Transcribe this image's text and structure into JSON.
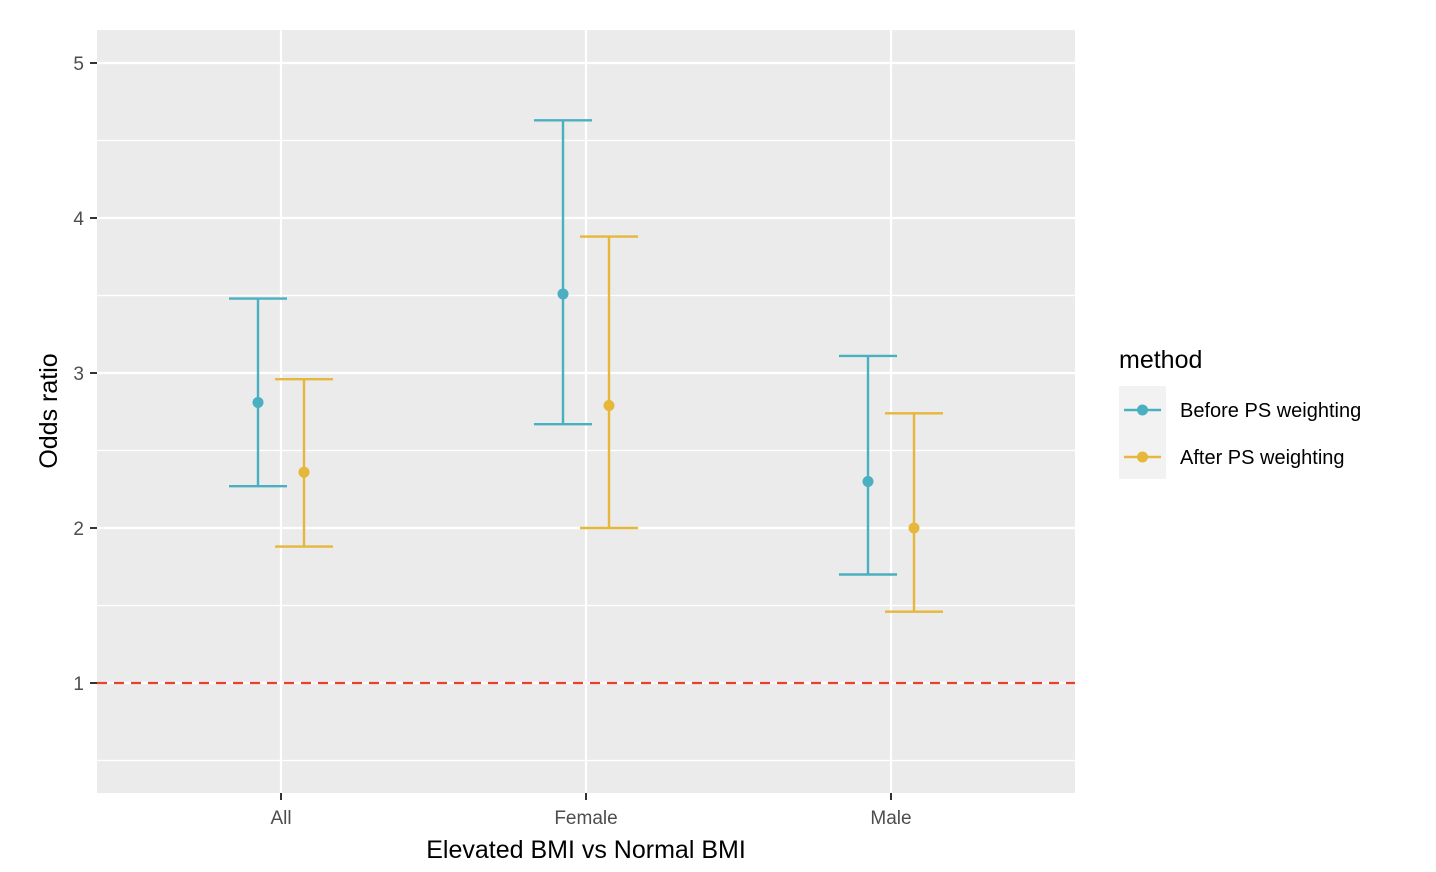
{
  "chart_data": {
    "type": "errorbar",
    "categories": [
      "All",
      "Female",
      "Male"
    ],
    "xlabel": "Elevated BMI vs Normal BMI",
    "ylabel": "Odds ratio",
    "ylim": [
      0.3,
      5.2
    ],
    "yticks": [
      1,
      2,
      3,
      4,
      5
    ],
    "yminor": [
      1.5,
      2.5,
      3.5,
      4.5,
      0.5
    ],
    "grid": true,
    "reference_line": {
      "y": 1,
      "style": "dashed",
      "color": "#e8402f"
    },
    "legend": {
      "title": "method",
      "position": "right"
    },
    "series": [
      {
        "name": "Before PS weighting",
        "color": "#4aafc0",
        "points": [
          {
            "category": "All",
            "estimate": 2.81,
            "lower": 2.27,
            "upper": 3.48
          },
          {
            "category": "Female",
            "estimate": 3.51,
            "lower": 2.67,
            "upper": 4.63
          },
          {
            "category": "Male",
            "estimate": 2.3,
            "lower": 1.7,
            "upper": 3.11
          }
        ]
      },
      {
        "name": "After PS weighting",
        "color": "#e6b73a",
        "points": [
          {
            "category": "All",
            "estimate": 2.36,
            "lower": 1.88,
            "upper": 2.96
          },
          {
            "category": "Female",
            "estimate": 2.79,
            "lower": 2.0,
            "upper": 3.88
          },
          {
            "category": "Male",
            "estimate": 2.0,
            "lower": 1.46,
            "upper": 2.74
          }
        ]
      }
    ]
  }
}
